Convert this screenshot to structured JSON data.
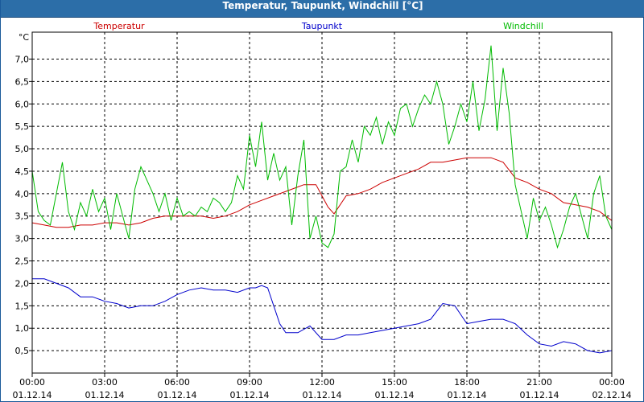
{
  "window": {
    "title": "Temperatur, Taupunkt, Windchill [°C]"
  },
  "chart_data": {
    "type": "line",
    "title": "Temperatur, Taupunkt, Windchill [°C]",
    "ylabel": "°C",
    "xlabel": "",
    "ylim": [
      0,
      7.6
    ],
    "xlim": [
      0,
      24
    ],
    "grid": true,
    "legend_position": "top",
    "y_ticks": [
      {
        "value": 0.5,
        "label": "0,5"
      },
      {
        "value": 1.0,
        "label": "1,0"
      },
      {
        "value": 1.5,
        "label": "1,5"
      },
      {
        "value": 2.0,
        "label": "2,0"
      },
      {
        "value": 2.5,
        "label": "2,5"
      },
      {
        "value": 3.0,
        "label": "3,0"
      },
      {
        "value": 3.5,
        "label": "3,5"
      },
      {
        "value": 4.0,
        "label": "4,0"
      },
      {
        "value": 4.5,
        "label": "4,5"
      },
      {
        "value": 5.0,
        "label": "5,0"
      },
      {
        "value": 5.5,
        "label": "5,5"
      },
      {
        "value": 6.0,
        "label": "6,0"
      },
      {
        "value": 6.5,
        "label": "6,5"
      },
      {
        "value": 7.0,
        "label": "7,0"
      }
    ],
    "x_ticks": [
      {
        "value": 0,
        "time": "00:00",
        "date": "01.12.14"
      },
      {
        "value": 3,
        "time": "03:00",
        "date": "01.12.14"
      },
      {
        "value": 6,
        "time": "06:00",
        "date": "01.12.14"
      },
      {
        "value": 9,
        "time": "09:00",
        "date": "01.12.14"
      },
      {
        "value": 12,
        "time": "12:00",
        "date": "01.12.14"
      },
      {
        "value": 15,
        "time": "15:00",
        "date": "01.12.14"
      },
      {
        "value": 18,
        "time": "18:00",
        "date": "01.12.14"
      },
      {
        "value": 21,
        "time": "21:00",
        "date": "01.12.14"
      },
      {
        "value": 24,
        "time": "00:00",
        "date": "02.12.14"
      }
    ],
    "series": [
      {
        "name": "Temperatur",
        "color": "#cc0000",
        "x": [
          0,
          0.5,
          1,
          1.5,
          2,
          2.5,
          3,
          3.5,
          4,
          4.5,
          5,
          5.5,
          6,
          6.5,
          7,
          7.5,
          8,
          8.5,
          9,
          9.5,
          10,
          10.5,
          11,
          11.25,
          11.5,
          11.75,
          12,
          12.25,
          12.5,
          12.75,
          13,
          13.5,
          14,
          14.5,
          15,
          15.5,
          16,
          16.5,
          17,
          17.5,
          18,
          18.5,
          19,
          19.5,
          20,
          20.5,
          21,
          21.5,
          22,
          22.5,
          23,
          23.5,
          24
        ],
        "values": [
          3.35,
          3.3,
          3.25,
          3.25,
          3.3,
          3.3,
          3.35,
          3.35,
          3.3,
          3.35,
          3.45,
          3.5,
          3.5,
          3.5,
          3.5,
          3.45,
          3.5,
          3.6,
          3.75,
          3.85,
          3.95,
          4.05,
          4.15,
          4.2,
          4.2,
          4.2,
          3.95,
          3.7,
          3.55,
          3.75,
          3.95,
          4.0,
          4.1,
          4.25,
          4.35,
          4.45,
          4.55,
          4.7,
          4.7,
          4.75,
          4.8,
          4.8,
          4.8,
          4.7,
          4.35,
          4.25,
          4.1,
          4.0,
          3.8,
          3.75,
          3.7,
          3.6,
          3.4
        ]
      },
      {
        "name": "Taupunkt",
        "color": "#0000cc",
        "x": [
          0,
          0.5,
          1,
          1.5,
          2,
          2.5,
          3,
          3.5,
          4,
          4.5,
          5,
          5.5,
          6,
          6.5,
          7,
          7.5,
          8,
          8.5,
          9,
          9.25,
          9.5,
          9.75,
          10,
          10.25,
          10.5,
          11,
          11.5,
          12,
          12.5,
          13,
          13.5,
          14,
          14.5,
          15,
          15.5,
          16,
          16.5,
          17,
          17.5,
          18,
          18.5,
          19,
          19.5,
          20,
          20.5,
          21,
          21.5,
          22,
          22.5,
          23,
          23.5,
          24
        ],
        "values": [
          2.1,
          2.1,
          2.0,
          1.9,
          1.7,
          1.7,
          1.6,
          1.55,
          1.45,
          1.5,
          1.5,
          1.6,
          1.75,
          1.85,
          1.9,
          1.85,
          1.85,
          1.8,
          1.9,
          1.9,
          1.95,
          1.9,
          1.5,
          1.1,
          0.9,
          0.9,
          1.05,
          0.75,
          0.75,
          0.85,
          0.85,
          0.9,
          0.95,
          1.0,
          1.05,
          1.1,
          1.2,
          1.55,
          1.5,
          1.1,
          1.15,
          1.2,
          1.2,
          1.1,
          0.85,
          0.65,
          0.6,
          0.7,
          0.65,
          0.5,
          0.45,
          0.5
        ]
      },
      {
        "name": "Windchill",
        "color": "#00bb00",
        "x": [
          0,
          0.25,
          0.5,
          0.75,
          1,
          1.25,
          1.5,
          1.75,
          2,
          2.25,
          2.5,
          2.75,
          3,
          3.25,
          3.5,
          3.75,
          4,
          4.25,
          4.5,
          4.75,
          5,
          5.25,
          5.5,
          5.75,
          6,
          6.25,
          6.5,
          6.75,
          7,
          7.25,
          7.5,
          7.75,
          8,
          8.25,
          8.5,
          8.75,
          9,
          9.25,
          9.5,
          9.75,
          10,
          10.25,
          10.5,
          10.75,
          11,
          11.25,
          11.5,
          11.75,
          12,
          12.25,
          12.5,
          12.75,
          13,
          13.25,
          13.5,
          13.75,
          14,
          14.25,
          14.5,
          14.75,
          15,
          15.25,
          15.5,
          15.75,
          16,
          16.25,
          16.5,
          16.75,
          17,
          17.25,
          17.5,
          17.75,
          18,
          18.25,
          18.5,
          18.75,
          19,
          19.25,
          19.5,
          19.75,
          20,
          20.25,
          20.5,
          20.75,
          21,
          21.25,
          21.5,
          21.75,
          22,
          22.25,
          22.5,
          22.75,
          23,
          23.25,
          23.5,
          23.75,
          24
        ],
        "values": [
          4.5,
          3.6,
          3.4,
          3.3,
          4.0,
          4.7,
          3.6,
          3.2,
          3.8,
          3.5,
          4.1,
          3.6,
          3.9,
          3.2,
          4.0,
          3.5,
          3.0,
          4.1,
          4.6,
          4.3,
          4.0,
          3.6,
          4.0,
          3.4,
          3.9,
          3.5,
          3.6,
          3.5,
          3.7,
          3.6,
          3.9,
          3.8,
          3.6,
          3.8,
          4.4,
          4.1,
          5.3,
          4.6,
          5.6,
          4.3,
          4.9,
          4.3,
          4.6,
          3.3,
          4.4,
          5.2,
          3.0,
          3.5,
          2.9,
          2.8,
          3.1,
          4.5,
          4.6,
          5.2,
          4.7,
          5.5,
          5.3,
          5.7,
          5.1,
          5.6,
          5.3,
          5.9,
          6.0,
          5.5,
          5.9,
          6.2,
          6.0,
          6.5,
          6.0,
          5.1,
          5.5,
          6.0,
          5.6,
          6.5,
          5.4,
          6.1,
          7.3,
          5.4,
          6.8,
          5.8,
          4.2,
          3.6,
          3.0,
          3.9,
          3.4,
          3.7,
          3.3,
          2.8,
          3.2,
          3.7,
          4.0,
          3.5,
          3.0,
          4.0,
          4.4,
          3.5,
          3.2
        ]
      }
    ]
  }
}
